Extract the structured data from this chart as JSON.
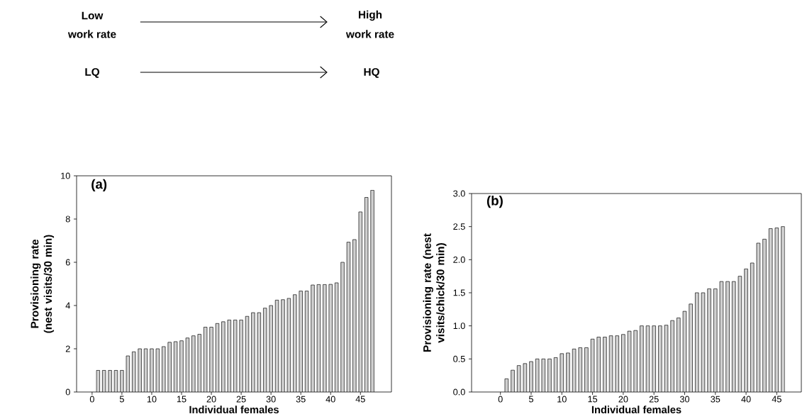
{
  "chart_data": [
    {
      "type": "bar",
      "title": "(a)",
      "xlabel": "Individual females",
      "ylabel": "Provisioning rate (nest visits/30 min)",
      "color": "#d0d0d0",
      "x": [
        1,
        2,
        3,
        4,
        5,
        6,
        7,
        8,
        9,
        10,
        11,
        12,
        13,
        14,
        15,
        16,
        17,
        18,
        19,
        20,
        21,
        22,
        23,
        24,
        25,
        26,
        27,
        28,
        29,
        30,
        31,
        32,
        33,
        34,
        35,
        36,
        37,
        38,
        39,
        40,
        41,
        42,
        43,
        44,
        45,
        46,
        47
      ],
      "values": [
        1.0,
        1.0,
        1.0,
        1.0,
        1.0,
        1.67,
        1.86,
        2.0,
        2.0,
        2.0,
        2.0,
        2.1,
        2.3,
        2.33,
        2.37,
        2.5,
        2.6,
        2.67,
        3.0,
        3.0,
        3.17,
        3.25,
        3.33,
        3.33,
        3.33,
        3.5,
        3.67,
        3.67,
        3.88,
        4.0,
        4.25,
        4.27,
        4.33,
        4.5,
        4.67,
        4.67,
        4.95,
        4.97,
        4.97,
        4.98,
        5.05,
        6.0,
        6.93,
        7.05,
        8.33,
        9.0,
        9.33
      ],
      "xlim": [
        -2.6,
        50.2
      ],
      "ylim": [
        0,
        10
      ],
      "xticks": [
        0,
        5,
        10,
        15,
        20,
        25,
        30,
        35,
        40,
        45
      ],
      "yticks": [
        0,
        2,
        4,
        6,
        8,
        10
      ],
      "grid": false,
      "annotations": [
        "Low",
        "work rate",
        "High",
        "work rate",
        "LQ",
        "HQ"
      ]
    },
    {
      "type": "bar",
      "title": "(b)",
      "xlabel": "Individual females",
      "ylabel": "Provisioning rate (nest visits/chick/30 min)",
      "color": "#d0d0d0",
      "x": [
        1,
        2,
        3,
        4,
        5,
        6,
        7,
        8,
        9,
        10,
        11,
        12,
        13,
        14,
        15,
        16,
        17,
        18,
        19,
        20,
        21,
        22,
        23,
        24,
        25,
        26,
        27,
        28,
        29,
        30,
        31,
        32,
        33,
        34,
        35,
        36,
        37,
        38,
        39,
        40,
        41,
        42,
        43,
        44,
        45,
        46
      ],
      "values": [
        0.2,
        0.33,
        0.4,
        0.43,
        0.46,
        0.5,
        0.5,
        0.5,
        0.52,
        0.58,
        0.59,
        0.65,
        0.67,
        0.67,
        0.8,
        0.83,
        0.83,
        0.85,
        0.85,
        0.87,
        0.92,
        0.93,
        1.0,
        1.0,
        1.0,
        1.0,
        1.01,
        1.08,
        1.12,
        1.22,
        1.33,
        1.5,
        1.5,
        1.56,
        1.56,
        1.67,
        1.67,
        1.67,
        1.75,
        1.86,
        1.95,
        2.25,
        2.31,
        2.47,
        2.48,
        2.5
      ],
      "xlim": [
        -4.7,
        49.0
      ],
      "ylim": [
        0,
        3.0
      ],
      "xticks": [
        0,
        5,
        10,
        15,
        20,
        25,
        30,
        35,
        40,
        45
      ],
      "yticks": [
        {
          "value": 0,
          "label": "0.0"
        },
        {
          "value": 0.5,
          "label": "0.5"
        },
        {
          "value": 1.0,
          "label": "1.0"
        },
        {
          "value": 1.5,
          "label": "1.5"
        },
        {
          "value": 2.0,
          "label": "2.0"
        },
        {
          "value": 2.5,
          "label": "2.5"
        },
        {
          "value": 3.0,
          "label": "3.0"
        }
      ],
      "grid": false
    }
  ]
}
